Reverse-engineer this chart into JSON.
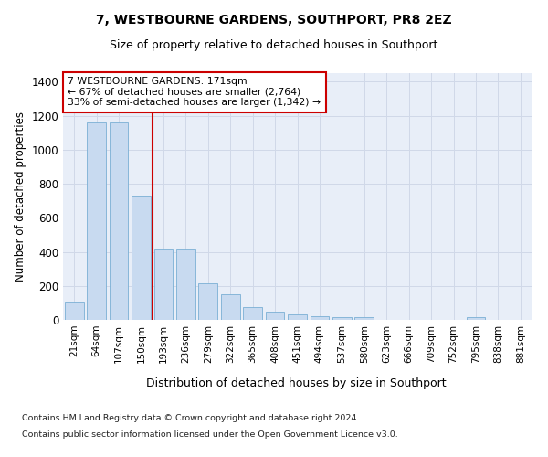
{
  "title": "7, WESTBOURNE GARDENS, SOUTHPORT, PR8 2EZ",
  "subtitle": "Size of property relative to detached houses in Southport",
  "xlabel": "Distribution of detached houses by size in Southport",
  "ylabel": "Number of detached properties",
  "categories": [
    "21sqm",
    "64sqm",
    "107sqm",
    "150sqm",
    "193sqm",
    "236sqm",
    "279sqm",
    "322sqm",
    "365sqm",
    "408sqm",
    "451sqm",
    "494sqm",
    "537sqm",
    "580sqm",
    "623sqm",
    "666sqm",
    "709sqm",
    "752sqm",
    "795sqm",
    "838sqm",
    "881sqm"
  ],
  "values": [
    105,
    1160,
    1160,
    730,
    420,
    420,
    215,
    150,
    75,
    50,
    30,
    20,
    15,
    15,
    0,
    0,
    0,
    0,
    15,
    0,
    0
  ],
  "bar_color": "#c8daf0",
  "bar_edge_color": "#7aafd4",
  "vline_color": "#cc0000",
  "vline_x": 3.5,
  "annotation_line1": "7 WESTBOURNE GARDENS: 171sqm",
  "annotation_line2": "← 67% of detached houses are smaller (2,764)",
  "annotation_line3": "33% of semi-detached houses are larger (1,342) →",
  "footer_line1": "Contains HM Land Registry data © Crown copyright and database right 2024.",
  "footer_line2": "Contains public sector information licensed under the Open Government Licence v3.0.",
  "ylim_max": 1450,
  "yticks": [
    0,
    200,
    400,
    600,
    800,
    1000,
    1200,
    1400
  ],
  "bg_color": "#e8eef8"
}
